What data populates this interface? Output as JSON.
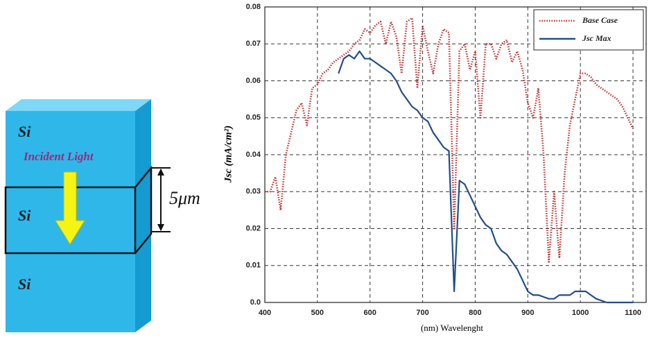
{
  "diagram": {
    "top_layer": "Si",
    "arrow_label": "Incident Light",
    "middle_layer": "Si",
    "thickness": "5μm",
    "bottom_layer": "Si"
  },
  "chart_data": {
    "type": "line",
    "x_label": "(nm) Wavelenght",
    "y_label": "Jsc (mA/cm²)",
    "x": [
      400,
      410,
      420,
      430,
      440,
      450,
      460,
      470,
      480,
      490,
      500,
      510,
      520,
      530,
      540,
      550,
      560,
      570,
      580,
      590,
      600,
      610,
      620,
      630,
      640,
      650,
      660,
      670,
      680,
      690,
      700,
      710,
      720,
      730,
      740,
      750,
      760,
      770,
      780,
      790,
      800,
      810,
      820,
      830,
      840,
      850,
      860,
      870,
      880,
      890,
      900,
      910,
      920,
      930,
      940,
      950,
      960,
      970,
      980,
      990,
      1000,
      1010,
      1020,
      1030,
      1040,
      1050,
      1060,
      1070,
      1080,
      1090,
      1100
    ],
    "series": [
      {
        "name": "Base Case",
        "color": "#c0302e",
        "style": "dotted",
        "values": [
          0.03,
          0.03,
          0.034,
          0.025,
          0.04,
          0.046,
          0.052,
          0.054,
          0.048,
          0.058,
          0.059,
          0.062,
          0.063,
          0.065,
          0.066,
          0.067,
          0.068,
          0.07,
          0.071,
          0.074,
          0.073,
          0.075,
          0.076,
          0.07,
          0.076,
          0.072,
          0.062,
          0.076,
          0.077,
          0.058,
          0.075,
          0.068,
          0.062,
          0.07,
          0.074,
          0.073,
          0.02,
          0.068,
          0.07,
          0.063,
          0.068,
          0.05,
          0.07,
          0.07,
          0.066,
          0.07,
          0.071,
          0.065,
          0.068,
          0.063,
          0.054,
          0.05,
          0.058,
          0.04,
          0.011,
          0.03,
          0.012,
          0.035,
          0.048,
          0.055,
          0.062,
          0.062,
          0.061,
          0.059,
          0.058,
          0.057,
          0.056,
          0.055,
          0.053,
          0.05,
          0.047
        ]
      },
      {
        "name": "Jsc Max",
        "color": "#1f4e8c",
        "style": "solid",
        "values": [
          null,
          null,
          null,
          null,
          null,
          null,
          null,
          null,
          null,
          null,
          null,
          null,
          null,
          null,
          0.062,
          0.066,
          0.067,
          0.066,
          0.068,
          0.066,
          0.066,
          0.065,
          0.064,
          0.063,
          0.062,
          0.06,
          0.057,
          0.055,
          0.053,
          0.052,
          0.05,
          0.049,
          0.046,
          0.044,
          0.042,
          0.041,
          0.003,
          0.033,
          0.032,
          0.029,
          0.026,
          0.023,
          0.021,
          0.02,
          0.016,
          0.014,
          0.013,
          0.011,
          0.009,
          0.006,
          0.003,
          0.002,
          0.002,
          0.0015,
          0.001,
          0.001,
          0.002,
          0.002,
          0.002,
          0.003,
          0.003,
          0.003,
          0.002,
          0.001,
          0.0005,
          0,
          0,
          0,
          0,
          0,
          0
        ]
      }
    ],
    "xlim": [
      400,
      1125
    ],
    "ylim": [
      0,
      0.08
    ],
    "xticks": [
      400,
      500,
      600,
      700,
      800,
      900,
      1000,
      1100
    ],
    "yticks": [
      {
        "value": 0,
        "label": "0.0"
      },
      0.01,
      0.02,
      0.03,
      0.04,
      0.05,
      0.06,
      0.07,
      0.08
    ],
    "grid": true,
    "legend": "upper right"
  }
}
